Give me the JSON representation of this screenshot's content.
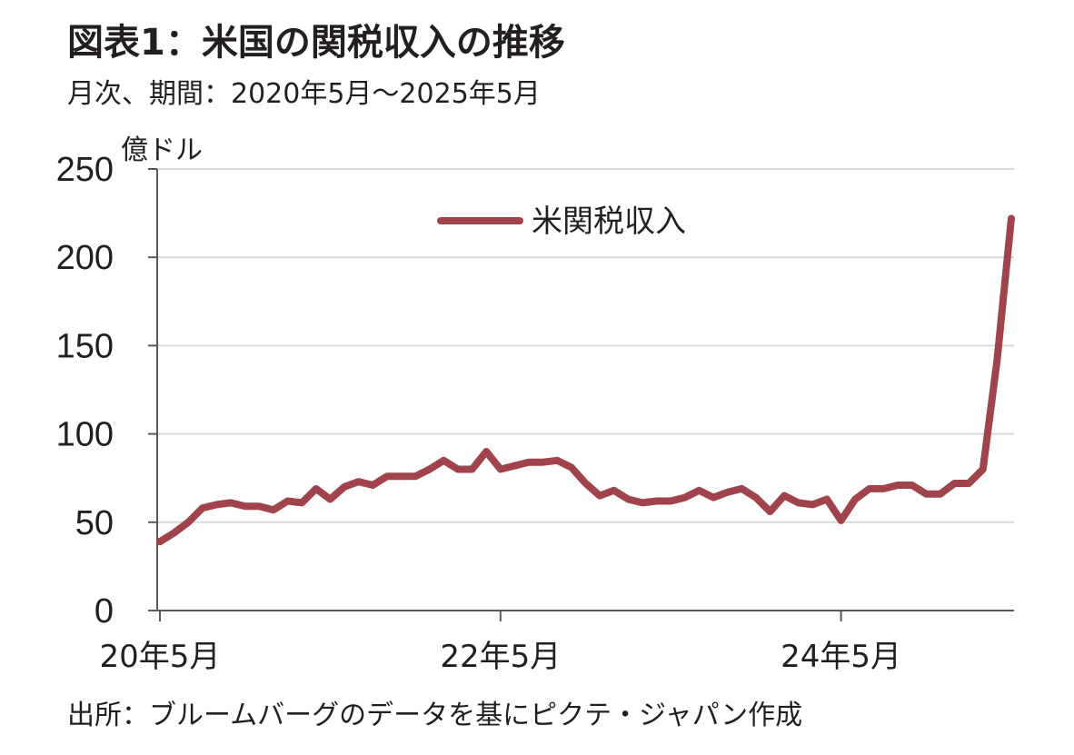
{
  "header": {
    "title": "図表1：米国の関税収入の推移",
    "subtitle": "月次、期間：2020年5月～2025年5月",
    "unit": "億ドル"
  },
  "footer": {
    "source": "出所：ブルームバーグのデータを基にピクテ・ジャパン作成"
  },
  "colors": {
    "series": "#a0434a",
    "grid": "#d9d9d9",
    "axis": "#595959"
  },
  "chart_data": {
    "type": "line",
    "title": "図表1：米国の関税収入の推移",
    "subtitle": "月次、期間：2020年5月～2025年5月",
    "ylabel": "億ドル",
    "ylim": [
      0,
      250
    ],
    "yticks": [
      0,
      50,
      100,
      150,
      200,
      250
    ],
    "xticks": [
      {
        "label": "20年5月",
        "index": 0
      },
      {
        "label": "22年5月",
        "index": 24
      },
      {
        "label": "24年5月",
        "index": 48
      }
    ],
    "grid": "horizontal",
    "legend_position": "top-center",
    "series": [
      {
        "name": "米関税収入",
        "color": "#a0434a",
        "x": [
          "2020-05",
          "2020-06",
          "2020-07",
          "2020-08",
          "2020-09",
          "2020-10",
          "2020-11",
          "2020-12",
          "2021-01",
          "2021-02",
          "2021-03",
          "2021-04",
          "2021-05",
          "2021-06",
          "2021-07",
          "2021-08",
          "2021-09",
          "2021-10",
          "2021-11",
          "2021-12",
          "2022-01",
          "2022-02",
          "2022-03",
          "2022-04",
          "2022-05",
          "2022-06",
          "2022-07",
          "2022-08",
          "2022-09",
          "2022-10",
          "2022-11",
          "2022-12",
          "2023-01",
          "2023-02",
          "2023-03",
          "2023-04",
          "2023-05",
          "2023-06",
          "2023-07",
          "2023-08",
          "2023-09",
          "2023-10",
          "2023-11",
          "2023-12",
          "2024-01",
          "2024-02",
          "2024-03",
          "2024-04",
          "2024-05",
          "2024-06",
          "2024-07",
          "2024-08",
          "2024-09",
          "2024-10",
          "2024-11",
          "2024-12",
          "2025-01",
          "2025-02",
          "2025-03",
          "2025-04",
          "2025-05"
        ],
        "values": [
          39,
          44,
          50,
          58,
          60,
          61,
          59,
          59,
          57,
          62,
          61,
          69,
          63,
          70,
          73,
          71,
          76,
          76,
          76,
          80,
          85,
          80,
          80,
          90,
          80,
          82,
          84,
          84,
          85,
          81,
          72,
          65,
          68,
          63,
          61,
          62,
          62,
          64,
          68,
          64,
          67,
          69,
          64,
          56,
          65,
          61,
          60,
          63,
          51,
          63,
          69,
          69,
          71,
          71,
          66,
          66,
          72,
          72,
          80,
          142,
          222
        ]
      }
    ]
  }
}
